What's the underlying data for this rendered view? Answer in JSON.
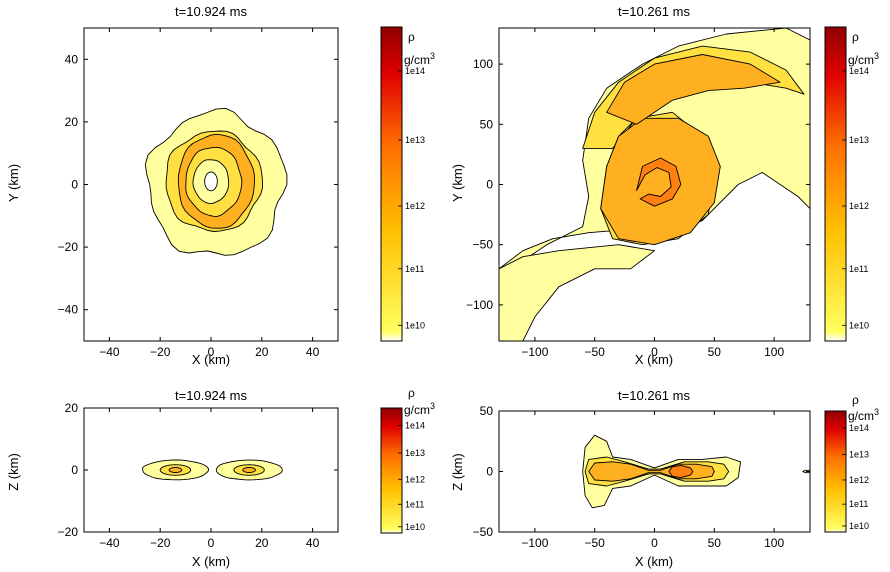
{
  "colors": {
    "c_1e10": "#ffffa0",
    "c_1e11": "#ffe040",
    "c_1e12": "#ffb020",
    "c_1e13": "#ff8010",
    "c_1e14": "#e03010",
    "outline": "#000000",
    "colorbar": [
      "#ffffff",
      "#ffff60",
      "#ffc000",
      "#ff7000",
      "#e00000",
      "#900000"
    ]
  },
  "chart_data": [
    {
      "type": "contour",
      "panel": "top-left",
      "title": "t=10.924 ms",
      "xlabel": "X (km)",
      "ylabel": "Y (km)",
      "xlim": [
        -50,
        50
      ],
      "ylim": [
        -50,
        50
      ],
      "xticks": [
        -40,
        -20,
        0,
        20,
        40
      ],
      "yticks": [
        -40,
        -20,
        0,
        20,
        40
      ],
      "colorbar": {
        "label": "ρ",
        "unit": "g/cm",
        "unit_sup": "3",
        "ticks": [
          "1e10",
          "1e11",
          "1e12",
          "1e13",
          "1e14"
        ]
      },
      "contours": [
        {
          "level": "1e10",
          "shape": "ellipse",
          "center": [
            2,
            0
          ],
          "rx": 27,
          "ry": 23,
          "jitter": 0.08
        },
        {
          "level": "1e11",
          "shape": "ellipse",
          "center": [
            1,
            1
          ],
          "rx": 19,
          "ry": 16,
          "jitter": 0.05
        },
        {
          "level": "1e12",
          "shape": "ellipse",
          "center": [
            2,
            1
          ],
          "rx": 15,
          "ry": 15,
          "jitter": 0.03
        },
        {
          "level": "1e11",
          "shape": "ellipse",
          "center": [
            1,
            1
          ],
          "rx": 11,
          "ry": 11,
          "jitter": 0.03
        },
        {
          "level": "1e10",
          "shape": "ellipse",
          "center": [
            0,
            1
          ],
          "rx": 7,
          "ry": 7,
          "jitter": 0.02
        },
        {
          "level": "none",
          "shape": "ellipse",
          "center": [
            0,
            1
          ],
          "rx": 2.5,
          "ry": 3,
          "jitter": 0
        }
      ]
    },
    {
      "type": "contour",
      "panel": "top-right",
      "title": "t=10.261 ms",
      "xlabel": "X (km)",
      "ylabel": "Y (km)",
      "xlim": [
        -130,
        130
      ],
      "ylim": [
        -130,
        130
      ],
      "xticks": [
        -100,
        -50,
        0,
        50,
        100
      ],
      "yticks": [
        -100,
        -50,
        0,
        50,
        100
      ],
      "colorbar": {
        "label": "ρ",
        "unit": "g/cm",
        "unit_sup": "3",
        "ticks": [
          "1e10",
          "1e11",
          "1e12",
          "1e13",
          "1e14"
        ]
      },
      "contours": [
        {
          "level": "1e10",
          "shape": "polygon",
          "points": [
            [
              -130,
              -70
            ],
            [
              -110,
              -55
            ],
            [
              -85,
              -45
            ],
            [
              -55,
              -40
            ],
            [
              -30,
              -38
            ],
            [
              -10,
              -45
            ],
            [
              15,
              -40
            ],
            [
              40,
              -30
            ],
            [
              70,
              0
            ],
            [
              90,
              10
            ],
            [
              120,
              -10
            ],
            [
              130,
              -20
            ],
            [
              130,
              120
            ],
            [
              110,
              130
            ],
            [
              60,
              125
            ],
            [
              20,
              115
            ],
            [
              -10,
              100
            ],
            [
              -40,
              80
            ],
            [
              -55,
              55
            ],
            [
              -60,
              20
            ],
            [
              -55,
              -10
            ],
            [
              -60,
              -35
            ],
            [
              -90,
              -50
            ],
            [
              -120,
              -70
            ],
            [
              -130,
              -130
            ]
          ]
        },
        {
          "level": "1e10",
          "shape": "polygon",
          "points": [
            [
              -130,
              -130
            ],
            [
              -130,
              -70
            ],
            [
              -110,
              -60
            ],
            [
              -80,
              -55
            ],
            [
              -50,
              -52
            ],
            [
              -30,
              -50
            ],
            [
              0,
              -55
            ],
            [
              -20,
              -70
            ],
            [
              -50,
              -70
            ],
            [
              -80,
              -85
            ],
            [
              -100,
              -110
            ],
            [
              -110,
              -130
            ]
          ]
        },
        {
          "level": "1e11",
          "shape": "polygon",
          "points": [
            [
              -60,
              30
            ],
            [
              -50,
              60
            ],
            [
              -30,
              85
            ],
            [
              0,
              105
            ],
            [
              40,
              115
            ],
            [
              80,
              110
            ],
            [
              110,
              95
            ],
            [
              125,
              75
            ],
            [
              110,
              80
            ],
            [
              80,
              85
            ],
            [
              50,
              85
            ],
            [
              20,
              75
            ],
            [
              -10,
              60
            ],
            [
              -30,
              40
            ],
            [
              -40,
              15
            ],
            [
              -45,
              -20
            ],
            [
              -35,
              -45
            ],
            [
              -10,
              -50
            ],
            [
              20,
              -45
            ],
            [
              45,
              -25
            ],
            [
              50,
              10
            ],
            [
              40,
              40
            ],
            [
              15,
              60
            ],
            [
              -15,
              55
            ],
            [
              -35,
              30
            ]
          ]
        },
        {
          "level": "1e12",
          "shape": "polygon",
          "points": [
            [
              -45,
              -20
            ],
            [
              -30,
              -45
            ],
            [
              0,
              -50
            ],
            [
              30,
              -40
            ],
            [
              50,
              -15
            ],
            [
              55,
              15
            ],
            [
              45,
              40
            ],
            [
              20,
              55
            ],
            [
              -10,
              55
            ],
            [
              -30,
              40
            ],
            [
              -40,
              15
            ]
          ]
        },
        {
          "level": "1e12",
          "shape": "polygon",
          "points": [
            [
              -40,
              60
            ],
            [
              -25,
              85
            ],
            [
              0,
              100
            ],
            [
              40,
              108
            ],
            [
              80,
              100
            ],
            [
              105,
              85
            ],
            [
              75,
              80
            ],
            [
              45,
              78
            ],
            [
              15,
              70
            ],
            [
              -15,
              50
            ]
          ]
        },
        {
          "level": "1e13",
          "shape": "polygon",
          "points": [
            [
              -15,
              -5
            ],
            [
              -10,
              15
            ],
            [
              5,
              22
            ],
            [
              18,
              15
            ],
            [
              22,
              0
            ],
            [
              15,
              -12
            ],
            [
              0,
              -18
            ],
            [
              -12,
              -12
            ],
            [
              -5,
              -8
            ],
            [
              5,
              -10
            ],
            [
              14,
              -2
            ],
            [
              12,
              10
            ],
            [
              2,
              14
            ],
            [
              -8,
              8
            ]
          ]
        }
      ]
    },
    {
      "type": "contour",
      "panel": "bottom-left",
      "title": "t=10.924 ms",
      "xlabel": "X (km)",
      "ylabel": "Z (km)",
      "xlim": [
        -50,
        50
      ],
      "ylim": [
        -20,
        20
      ],
      "xticks": [
        -40,
        -20,
        0,
        20,
        40
      ],
      "yticks": [
        -20,
        0,
        20
      ],
      "colorbar": {
        "label": "ρ",
        "unit": "g/cm",
        "unit_sup": "3",
        "ticks": [
          "1e10",
          "1e11",
          "1e12",
          "1e13",
          "1e14"
        ]
      },
      "contours": [
        {
          "level": "1e10",
          "shape": "ellipse",
          "center": [
            -14,
            0
          ],
          "rx": 13,
          "ry": 3.2,
          "jitter": 0.02
        },
        {
          "level": "1e10",
          "shape": "ellipse",
          "center": [
            15,
            0
          ],
          "rx": 13,
          "ry": 3.2,
          "jitter": 0.02
        },
        {
          "level": "1e11",
          "shape": "ellipse",
          "center": [
            -14,
            0
          ],
          "rx": 6,
          "ry": 1.7,
          "jitter": 0
        },
        {
          "level": "1e11",
          "shape": "ellipse",
          "center": [
            15,
            0
          ],
          "rx": 6,
          "ry": 1.7,
          "jitter": 0
        },
        {
          "level": "1e12",
          "shape": "ellipse",
          "center": [
            -14,
            0
          ],
          "rx": 2.5,
          "ry": 0.8,
          "jitter": 0
        },
        {
          "level": "1e12",
          "shape": "ellipse",
          "center": [
            15,
            0
          ],
          "rx": 2.5,
          "ry": 0.8,
          "jitter": 0
        }
      ]
    },
    {
      "type": "contour",
      "panel": "bottom-right",
      "title": "t=10.261 ms",
      "xlabel": "X (km)",
      "ylabel": "Z (km)",
      "xlim": [
        -130,
        130
      ],
      "ylim": [
        -50,
        50
      ],
      "xticks": [
        -100,
        -50,
        0,
        50,
        100
      ],
      "yticks": [
        -50,
        0,
        50
      ],
      "colorbar": {
        "label": "ρ",
        "unit": "g/cm",
        "unit_sup": "3",
        "ticks": [
          "1e10",
          "1e11",
          "1e12",
          "1e13",
          "1e14"
        ]
      },
      "contours": [
        {
          "level": "1e10",
          "shape": "polygon",
          "points": [
            [
              -60,
              0
            ],
            [
              -58,
              20
            ],
            [
              -50,
              30
            ],
            [
              -40,
              25
            ],
            [
              -35,
              12
            ],
            [
              -20,
              10
            ],
            [
              0,
              3
            ],
            [
              20,
              10
            ],
            [
              40,
              10
            ],
            [
              60,
              12
            ],
            [
              72,
              8
            ],
            [
              70,
              -5
            ],
            [
              60,
              -12
            ],
            [
              40,
              -12
            ],
            [
              20,
              -12
            ],
            [
              0,
              -3
            ],
            [
              -20,
              -12
            ],
            [
              -35,
              -14
            ],
            [
              -42,
              -28
            ],
            [
              -52,
              -30
            ],
            [
              -58,
              -20
            ]
          ]
        },
        {
          "level": "1e11",
          "shape": "polygon",
          "points": [
            [
              -58,
              0
            ],
            [
              -55,
              10
            ],
            [
              -40,
              12
            ],
            [
              -25,
              8
            ],
            [
              -5,
              2
            ],
            [
              5,
              2
            ],
            [
              25,
              8
            ],
            [
              45,
              8
            ],
            [
              58,
              6
            ],
            [
              62,
              0
            ],
            [
              58,
              -6
            ],
            [
              45,
              -8
            ],
            [
              25,
              -8
            ],
            [
              5,
              -2
            ],
            [
              -5,
              -2
            ],
            [
              -25,
              -8
            ],
            [
              -40,
              -12
            ],
            [
              -55,
              -10
            ]
          ]
        },
        {
          "level": "1e12",
          "shape": "polygon",
          "points": [
            [
              -55,
              0
            ],
            [
              -50,
              7
            ],
            [
              -35,
              8
            ],
            [
              -20,
              6
            ],
            [
              -5,
              1
            ],
            [
              5,
              1
            ],
            [
              20,
              6
            ],
            [
              35,
              6
            ],
            [
              48,
              4
            ],
            [
              50,
              0
            ],
            [
              48,
              -4
            ],
            [
              35,
              -6
            ],
            [
              20,
              -6
            ],
            [
              5,
              -1
            ],
            [
              -5,
              -1
            ],
            [
              -20,
              -6
            ],
            [
              -35,
              -8
            ],
            [
              -50,
              -7
            ]
          ]
        },
        {
          "level": "1e13",
          "shape": "polygon",
          "points": [
            [
              12,
              0
            ],
            [
              15,
              4
            ],
            [
              22,
              5
            ],
            [
              30,
              3
            ],
            [
              32,
              0
            ],
            [
              30,
              -3
            ],
            [
              22,
              -5
            ],
            [
              15,
              -4
            ]
          ]
        },
        {
          "level": "1e10",
          "shape": "polygon",
          "points": [
            [
              124,
              0
            ],
            [
              126,
              1
            ],
            [
              130,
              1
            ],
            [
              130,
              -1
            ],
            [
              126,
              -1
            ]
          ]
        }
      ]
    }
  ]
}
